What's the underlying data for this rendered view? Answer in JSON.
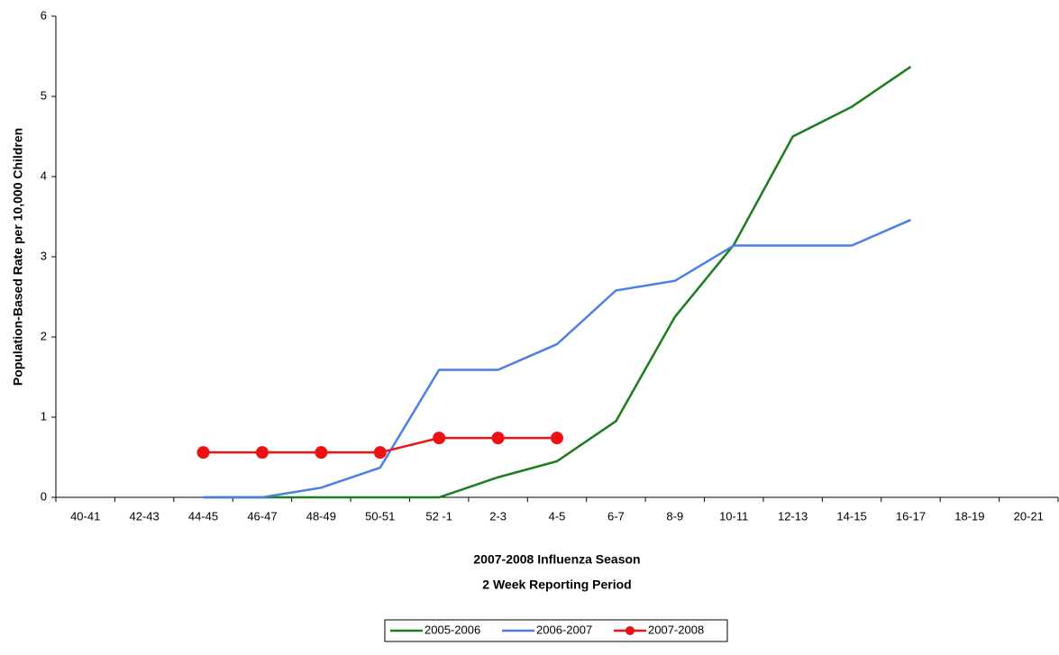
{
  "chart_data": {
    "type": "line",
    "y_label": "Population-Based Rate per 10,000 Children",
    "x_label": [
      "2007-2008 Influenza Season",
      "2 Week Reporting Period"
    ],
    "categories": [
      "40-41",
      "42-43",
      "44-45",
      "46-47",
      "48-49",
      "50-51",
      "52 -1",
      "2-3",
      "4-5",
      "6-7",
      "8-9",
      "10-11",
      "12-13",
      "14-15",
      "16-17",
      "18-19",
      "20-21"
    ],
    "series": [
      {
        "name": "2005-2006",
        "color": "#1a7f1a",
        "markers": false,
        "values": [
          null,
          null,
          0,
          0,
          0,
          0,
          0,
          0.25,
          0.45,
          0.95,
          2.25,
          3.15,
          4.5,
          4.87,
          5.37,
          null,
          null
        ]
      },
      {
        "name": "2006-2007",
        "color": "#4a7fe8",
        "markers": false,
        "values": [
          null,
          null,
          0,
          0,
          0.12,
          0.37,
          1.59,
          1.59,
          1.91,
          2.58,
          2.7,
          3.14,
          3.14,
          3.14,
          3.46,
          null,
          null
        ]
      },
      {
        "name": "2007-2008",
        "color": "#ee1111",
        "markers": true,
        "values": [
          null,
          null,
          0.56,
          0.56,
          0.56,
          0.56,
          0.74,
          0.74,
          0.74,
          null,
          null,
          null,
          null,
          null,
          null,
          null,
          null
        ]
      }
    ],
    "ylim": [
      0,
      6
    ],
    "yticks": [
      0,
      1,
      2,
      3,
      4,
      5,
      6
    ],
    "grid": false,
    "legend": "bottom"
  }
}
